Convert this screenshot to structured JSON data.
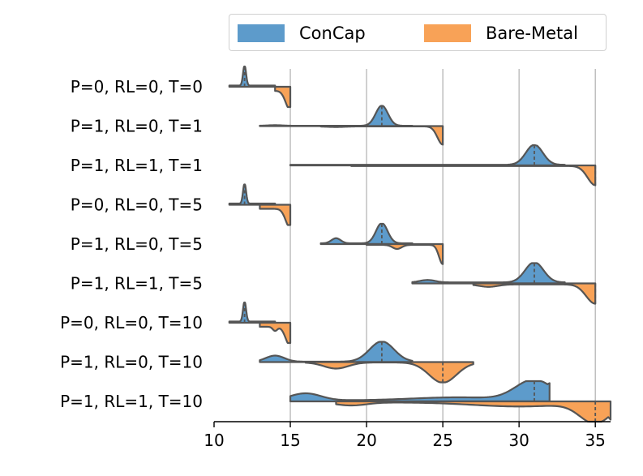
{
  "chart_data": {
    "type": "violin",
    "orientation": "horizontal",
    "split": true,
    "title": "",
    "xlabel": "",
    "ylabel": "",
    "xlim": [
      10,
      36
    ],
    "xticks": [
      10,
      15,
      20,
      25,
      30,
      35
    ],
    "grid": "x",
    "legend_position": "top",
    "colors": {
      "ConCap": "#5d9bcb",
      "Bare-Metal": "#f8a257",
      "outline": "#555555"
    },
    "series": [
      {
        "name": "ConCap",
        "side": "upper"
      },
      {
        "name": "Bare-Metal",
        "side": "lower"
      }
    ],
    "categories": [
      {
        "label": "P=0, RL=0, T=0",
        "ConCap": {
          "min": 11,
          "max": 14,
          "median": 12,
          "peaks": [
            [
              12,
              0.1,
              1.0
            ]
          ],
          "floor": 0.06
        },
        "Bare-Metal": {
          "min": 14,
          "max": 15,
          "median": 15,
          "peaks": [
            [
              15,
              0.3,
              0.95
            ]
          ],
          "floor": 0.2
        }
      },
      {
        "label": "P=1, RL=0, T=1",
        "ConCap": {
          "min": 13,
          "max": 23,
          "median": 21,
          "peaks": [
            [
              21,
              0.4,
              1.0
            ],
            [
              14,
              0.5,
              0.03
            ]
          ],
          "floor": 0.015
        },
        "Bare-Metal": {
          "min": 17,
          "max": 25,
          "median": 25,
          "peaks": [
            [
              25,
              0.35,
              0.9
            ],
            [
              18,
              0.6,
              0.03
            ]
          ],
          "floor": 0.015
        }
      },
      {
        "label": "P=1, RL=1, T=1",
        "ConCap": {
          "min": 15,
          "max": 33,
          "median": 31,
          "peaks": [
            [
              31,
              0.55,
              1.0
            ]
          ],
          "floor": 0.03
        },
        "Bare-Metal": {
          "min": 19,
          "max": 35,
          "median": 35,
          "peaks": [
            [
              35,
              0.5,
              0.95
            ]
          ],
          "floor": 0.03
        }
      },
      {
        "label": "P=0, RL=0, T=5",
        "ConCap": {
          "min": 11,
          "max": 14,
          "median": 12,
          "peaks": [
            [
              12,
              0.1,
              1.0
            ]
          ],
          "floor": 0.06
        },
        "Bare-Metal": {
          "min": 13,
          "max": 15,
          "median": 15,
          "peaks": [
            [
              15,
              0.3,
              0.95
            ]
          ],
          "floor": 0.2
        }
      },
      {
        "label": "P=1, RL=0, T=5",
        "ConCap": {
          "min": 17,
          "max": 23,
          "median": 21,
          "peaks": [
            [
              21,
              0.38,
              1.0
            ],
            [
              18,
              0.3,
              0.25
            ]
          ],
          "floor": 0.04
        },
        "Bare-Metal": {
          "min": 20,
          "max": 25,
          "median": 25,
          "peaks": [
            [
              25,
              0.25,
              0.95
            ],
            [
              22,
              0.3,
              0.2
            ]
          ],
          "floor": 0.04
        }
      },
      {
        "label": "P=1, RL=1, T=5",
        "ConCap": {
          "min": 23,
          "max": 33,
          "median": 31,
          "peaks": [
            [
              31,
              0.6,
              1.0
            ],
            [
              24,
              0.5,
              0.12
            ]
          ],
          "floor": 0.05
        },
        "Bare-Metal": {
          "min": 27,
          "max": 35,
          "median": 35,
          "peaks": [
            [
              35,
              0.6,
              0.95
            ],
            [
              28,
              0.6,
              0.12
            ]
          ],
          "floor": 0.05
        }
      },
      {
        "label": "P=0, RL=0, T=10",
        "ConCap": {
          "min": 11,
          "max": 14,
          "median": 12,
          "peaks": [
            [
              12,
              0.1,
              1.0
            ]
          ],
          "floor": 0.06
        },
        "Bare-Metal": {
          "min": 13,
          "max": 15,
          "median": 15,
          "peaks": [
            [
              15,
              0.3,
              0.95
            ],
            [
              14,
              0.15,
              0.2
            ]
          ],
          "floor": 0.2
        }
      },
      {
        "label": "P=1, RL=0, T=10",
        "ConCap": {
          "min": 13,
          "max": 23,
          "median": 21,
          "peaks": [
            [
              21,
              0.8,
              1.0
            ],
            [
              14,
              0.6,
              0.3
            ]
          ],
          "floor": 0.02
        },
        "Bare-Metal": {
          "min": 16,
          "max": 27,
          "median": 25,
          "peaks": [
            [
              25,
              0.9,
              1.0
            ],
            [
              18,
              0.8,
              0.3
            ]
          ],
          "floor": 0.02
        }
      },
      {
        "label": "P=1, RL=1, T=10",
        "ConCap": {
          "min": 15,
          "max": 32,
          "median": 31,
          "peaks": [
            [
              31,
              1.2,
              1.0
            ],
            [
              16,
              1.0,
              0.35
            ],
            [
              26,
              3,
              0.15
            ]
          ],
          "floor": 0.05,
          "flat_end": true
        },
        "Bare-Metal": {
          "min": 18,
          "max": 36,
          "median": 35,
          "peaks": [
            [
              35,
              1.0,
              1.0
            ],
            [
              19,
              1.0,
              0.15
            ],
            [
              30,
              3,
              0.2
            ]
          ],
          "floor": 0.05,
          "flat_end": true
        }
      }
    ]
  }
}
